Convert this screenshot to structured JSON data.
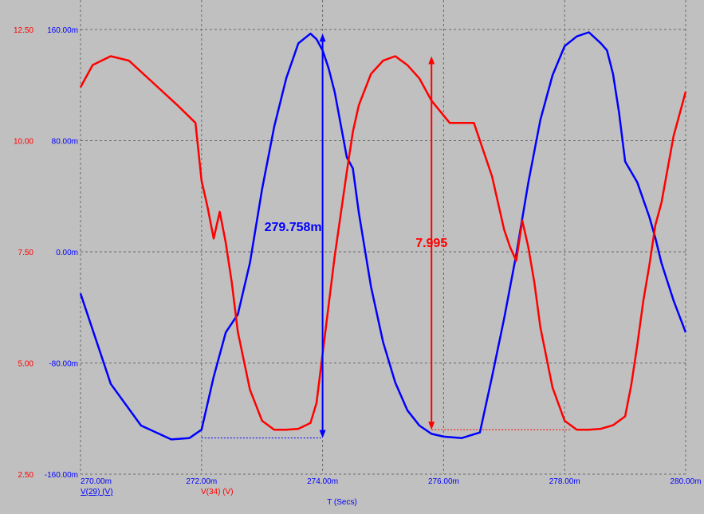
{
  "chart_data": {
    "type": "line",
    "xlabel": "T (Secs)",
    "x_ticks": [
      "270.00m",
      "272.00m",
      "274.00m",
      "276.00m",
      "278.00m",
      "280.00m"
    ],
    "x_range": [
      0.27,
      0.28
    ],
    "y_left": {
      "range": [
        2.5,
        12.5
      ],
      "ticks": [
        "2.50",
        "5.00",
        "7.50",
        "10.00",
        "12.50"
      ],
      "color": "#ff0000"
    },
    "y_right": {
      "range": [
        -0.16,
        0.16
      ],
      "ticks": [
        "-160.00m",
        "-80.00m",
        "0.00m",
        "80.00m",
        "160.00m"
      ],
      "color": "#0000ff"
    },
    "grid": true,
    "series": [
      {
        "name": "V(29) (V)",
        "axis": "right",
        "color": "#0000ff",
        "x": [
          0.27,
          0.2705,
          0.271,
          0.2715,
          0.2718,
          0.272,
          0.2722,
          0.2724,
          0.2726,
          0.2728,
          0.273,
          0.2732,
          0.2734,
          0.2736,
          0.2738,
          0.2739,
          0.274,
          0.2741,
          0.2742,
          0.2744,
          0.2745,
          0.2746,
          0.2748,
          0.275,
          0.2752,
          0.2754,
          0.2756,
          0.2758,
          0.276,
          0.2763,
          0.2766,
          0.2768,
          0.277,
          0.2772,
          0.2774,
          0.2776,
          0.2778,
          0.278,
          0.2782,
          0.2784,
          0.2786,
          0.2787,
          0.2788,
          0.2789,
          0.279,
          0.2792,
          0.2794,
          0.2795,
          0.2796,
          0.2798,
          0.28
        ],
        "y": [
          -0.03,
          -0.095,
          -0.125,
          -0.135,
          -0.134,
          -0.128,
          -0.09,
          -0.058,
          -0.045,
          -0.008,
          0.045,
          0.09,
          0.125,
          0.15,
          0.157,
          0.153,
          0.145,
          0.132,
          0.115,
          0.068,
          0.06,
          0.028,
          -0.025,
          -0.065,
          -0.094,
          -0.114,
          -0.125,
          -0.131,
          -0.133,
          -0.134,
          -0.13,
          -0.09,
          -0.048,
          -0.002,
          0.05,
          0.095,
          0.127,
          0.148,
          0.155,
          0.158,
          0.15,
          0.145,
          0.128,
          0.1,
          0.065,
          0.05,
          0.025,
          0.01,
          -0.008,
          -0.035,
          -0.058
        ]
      },
      {
        "name": "V(34) (V)",
        "axis": "left",
        "color": "#ff0000",
        "x": [
          0.27,
          0.2702,
          0.2705,
          0.2708,
          0.2712,
          0.2716,
          0.2719,
          0.272,
          0.2721,
          0.2722,
          0.2723,
          0.2724,
          0.2725,
          0.2726,
          0.2728,
          0.273,
          0.2732,
          0.2734,
          0.2736,
          0.2738,
          0.2739,
          0.274,
          0.2742,
          0.2744,
          0.2745,
          0.2746,
          0.2748,
          0.275,
          0.2752,
          0.2754,
          0.2756,
          0.2758,
          0.2761,
          0.2765,
          0.2768,
          0.277,
          0.2771,
          0.2772,
          0.2773,
          0.2774,
          0.2775,
          0.2776,
          0.2778,
          0.278,
          0.2782,
          0.2784,
          0.2786,
          0.2788,
          0.279,
          0.2791,
          0.2792,
          0.2793,
          0.2794,
          0.2795,
          0.2796,
          0.2798,
          0.28
        ],
        "y": [
          11.2,
          11.7,
          11.9,
          11.8,
          11.3,
          10.8,
          10.4,
          9.1,
          8.5,
          7.8,
          8.4,
          7.7,
          6.8,
          5.7,
          4.4,
          3.7,
          3.5,
          3.5,
          3.52,
          3.65,
          4.1,
          5.2,
          7.4,
          9.3,
          10.2,
          10.8,
          11.5,
          11.8,
          11.9,
          11.7,
          11.4,
          10.9,
          10.4,
          10.4,
          9.2,
          8.0,
          7.6,
          7.3,
          8.2,
          7.6,
          6.8,
          5.8,
          4.45,
          3.7,
          3.5,
          3.5,
          3.52,
          3.6,
          3.8,
          4.5,
          5.4,
          6.4,
          7.2,
          8.1,
          8.6,
          10.1,
          11.1
        ]
      }
    ],
    "annotations": [
      {
        "label": "279.758m",
        "axis": "right",
        "x": 0.274,
        "from": -0.134,
        "to": 0.157,
        "color": "#0000ff"
      },
      {
        "label": "7.995",
        "axis": "left",
        "x": 0.2758,
        "from": 3.5,
        "to": 11.9,
        "color": "#ff0000"
      }
    ],
    "baselines": [
      {
        "axis": "right",
        "y": -0.134,
        "x_from": 0.272,
        "x_to": 0.274,
        "color": "#0000ff"
      },
      {
        "axis": "left",
        "y": 3.5,
        "x_from": 0.2758,
        "x_to": 0.2781,
        "color": "#ff0000"
      }
    ]
  }
}
